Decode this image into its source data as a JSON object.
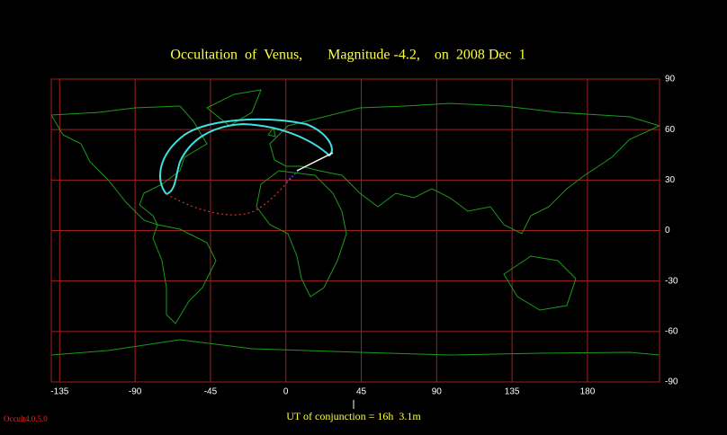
{
  "title": "Occultation  of  Venus,       Magnitude -4.2,    on  2008 Dec  1",
  "conjunction": "UT of conjunction = 16h  3.1m",
  "version": "Occult4.0.5.0",
  "map": {
    "xlim": [
      -140,
      223
    ],
    "ylim": [
      -90,
      90
    ],
    "xticks": [
      -135,
      -90,
      -45,
      0,
      45,
      90,
      135,
      180
    ],
    "yticks": [
      90,
      60,
      30,
      0,
      -30,
      -60,
      -90
    ]
  }
}
